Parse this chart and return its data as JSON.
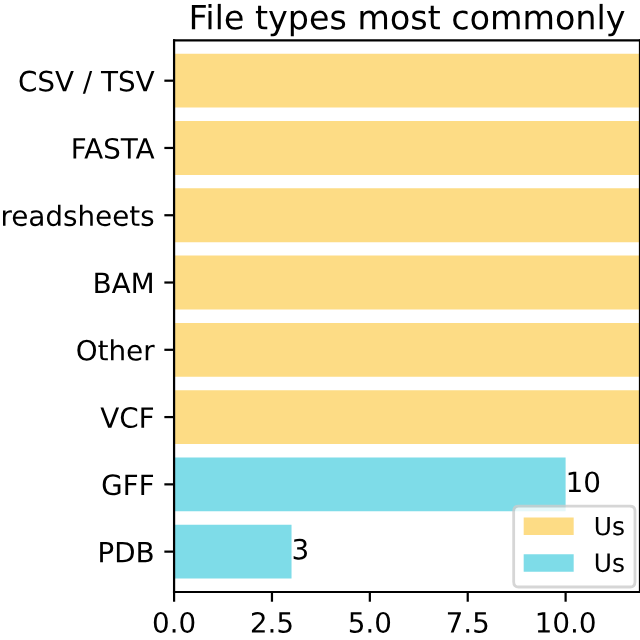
{
  "chart_data": {
    "type": "bar",
    "orientation": "horizontal",
    "title": "File types most commonly",
    "categories": [
      "CSV / TSV",
      "FASTA",
      "readsheets",
      "BAM",
      "Other",
      "VCF",
      "GFF",
      "PDB"
    ],
    "series": [
      {
        "name": "Us",
        "color": "#fddc85",
        "values": [
          11.9,
          11.9,
          11.9,
          11.9,
          11.9,
          11.9,
          null,
          null
        ],
        "value_labels": [
          null,
          null,
          null,
          null,
          null,
          null,
          null,
          null
        ]
      },
      {
        "name": "Us",
        "color": "#7edce8",
        "values": [
          null,
          null,
          null,
          null,
          null,
          null,
          10,
          3
        ],
        "value_labels": [
          null,
          null,
          null,
          null,
          null,
          null,
          "10",
          "3"
        ]
      }
    ],
    "xlim": [
      0,
      11.9
    ],
    "xticks": [
      {
        "value": 0,
        "label": "0.0"
      },
      {
        "value": 2.5,
        "label": "2.5"
      },
      {
        "value": 5,
        "label": "5.0"
      },
      {
        "value": 7.5,
        "label": "7.5"
      },
      {
        "value": 10,
        "label": "10.0"
      }
    ],
    "legend": "bottom right",
    "grid": false
  }
}
